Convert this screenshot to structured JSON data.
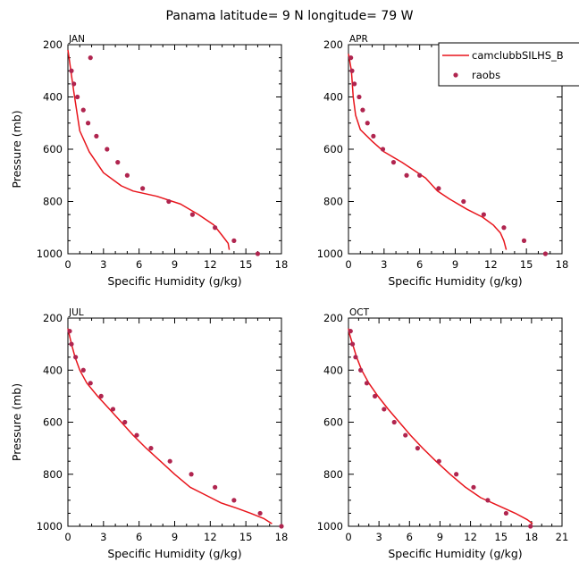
{
  "figure": {
    "title": "Panama  latitude= 9 N longitude= 79 W"
  },
  "legend": {
    "model_label": "camclubbSILHS_B",
    "obs_label": "raobs"
  },
  "colors": {
    "model": "#e8141b",
    "obs": "#b0254f",
    "axis": "#000000"
  },
  "chart_data": [
    {
      "type": "line",
      "panel": "JAN",
      "xlabel": "Specific Humidity (g/kg)",
      "ylabel": "Pressure (mb)",
      "xlim": [
        0,
        18
      ],
      "ylim": [
        200,
        1000
      ],
      "xticks": [
        0,
        3,
        6,
        9,
        12,
        15,
        18
      ],
      "yticks": [
        200,
        400,
        600,
        800,
        1000
      ],
      "series": [
        {
          "name": "camclubbSILHS_B",
          "style": "line",
          "x": [
            0.0,
            0.1,
            0.25,
            0.5,
            0.8,
            1.0,
            1.8,
            3.0,
            4.5,
            5.5,
            7.5,
            9.5,
            11.0,
            12.3,
            13.0,
            13.5,
            13.6
          ],
          "y": [
            220,
            250,
            300,
            380,
            470,
            530,
            610,
            690,
            740,
            760,
            780,
            810,
            850,
            890,
            930,
            960,
            985
          ]
        },
        {
          "name": "raobs",
          "style": "markers",
          "x": [
            1.9,
            0.3,
            0.5,
            0.8,
            1.3,
            1.7,
            2.4,
            3.3,
            4.2,
            5.0,
            6.3,
            8.5,
            10.5,
            12.4,
            14.0,
            16.0
          ],
          "y": [
            250,
            300,
            350,
            400,
            450,
            500,
            550,
            600,
            650,
            700,
            750,
            800,
            850,
            900,
            950,
            1000
          ]
        }
      ]
    },
    {
      "type": "line",
      "panel": "APR",
      "xlabel": "Specific Humidity (g/kg)",
      "ylabel": "Pressure (mb)",
      "xlim": [
        0,
        18
      ],
      "ylim": [
        200,
        1000
      ],
      "xticks": [
        0,
        3,
        6,
        9,
        12,
        15,
        18
      ],
      "yticks": [
        200,
        400,
        600,
        800,
        1000
      ],
      "series": [
        {
          "name": "camclubbSILHS_B",
          "style": "line",
          "x": [
            0.0,
            0.1,
            0.25,
            0.4,
            0.6,
            1.0,
            2.0,
            3.0,
            4.5,
            5.5,
            6.5,
            7.5,
            8.5,
            10.0,
            11.3,
            12.2,
            12.8,
            13.1,
            13.3
          ],
          "y": [
            235,
            260,
            300,
            400,
            470,
            525,
            570,
            610,
            650,
            680,
            710,
            760,
            790,
            830,
            860,
            890,
            920,
            950,
            985
          ]
        },
        {
          "name": "raobs",
          "style": "markers",
          "x": [
            0.2,
            0.3,
            0.5,
            0.9,
            1.2,
            1.6,
            2.1,
            2.9,
            3.8,
            4.9,
            6.0,
            7.6,
            9.7,
            11.4,
            13.1,
            14.8,
            16.6
          ],
          "y": [
            250,
            300,
            350,
            400,
            450,
            500,
            550,
            600,
            650,
            700,
            700,
            750,
            800,
            850,
            900,
            950,
            1000
          ]
        }
      ]
    },
    {
      "type": "line",
      "panel": "JUL",
      "xlabel": "Specific Humidity (g/kg)",
      "ylabel": "Pressure (mb)",
      "xlim": [
        0,
        18
      ],
      "ylim": [
        200,
        1000
      ],
      "xticks": [
        0,
        3,
        6,
        9,
        12,
        15,
        18
      ],
      "yticks": [
        200,
        400,
        600,
        800,
        1000
      ],
      "series": [
        {
          "name": "camclubbSILHS_B",
          "style": "line",
          "x": [
            0.0,
            0.1,
            0.3,
            0.6,
            1.0,
            1.6,
            2.5,
            3.5,
            4.5,
            5.5,
            6.6,
            7.8,
            9.0,
            10.3,
            11.6,
            12.9,
            14.2,
            15.4,
            16.5,
            17.2
          ],
          "y": [
            240,
            260,
            300,
            350,
            400,
            450,
            500,
            550,
            600,
            650,
            700,
            750,
            800,
            850,
            880,
            910,
            930,
            950,
            970,
            990
          ]
        },
        {
          "name": "raobs",
          "style": "markers",
          "x": [
            0.15,
            0.3,
            0.65,
            1.3,
            1.9,
            2.8,
            3.8,
            4.8,
            5.8,
            7.0,
            8.6,
            10.4,
            12.4,
            14.0,
            16.2,
            18.0
          ],
          "y": [
            250,
            300,
            350,
            400,
            450,
            500,
            550,
            600,
            650,
            700,
            750,
            800,
            850,
            900,
            950,
            1000
          ]
        }
      ]
    },
    {
      "type": "line",
      "panel": "OCT",
      "xlabel": "Specific Humidity (g/kg)",
      "ylabel": "Pressure (mb)",
      "xlim": [
        0,
        21
      ],
      "ylim": [
        200,
        1000
      ],
      "xticks": [
        0,
        3,
        6,
        9,
        12,
        15,
        18,
        21
      ],
      "yticks": [
        200,
        400,
        600,
        800,
        1000
      ],
      "series": [
        {
          "name": "camclubbSILHS_B",
          "style": "line",
          "x": [
            0.0,
            0.1,
            0.4,
            0.8,
            1.3,
            2.0,
            2.9,
            3.9,
            5.0,
            6.1,
            7.3,
            8.6,
            10.0,
            11.5,
            13.0,
            14.7,
            16.4,
            17.6,
            18.1
          ],
          "y": [
            240,
            260,
            300,
            350,
            400,
            450,
            500,
            550,
            600,
            650,
            700,
            750,
            800,
            850,
            890,
            920,
            950,
            975,
            990
          ]
        },
        {
          "name": "raobs",
          "style": "markers",
          "x": [
            0.2,
            0.4,
            0.7,
            1.2,
            1.8,
            2.6,
            3.5,
            4.5,
            5.6,
            6.8,
            8.9,
            10.6,
            12.3,
            13.7,
            15.5,
            17.9
          ],
          "y": [
            250,
            300,
            350,
            400,
            450,
            500,
            550,
            600,
            650,
            700,
            750,
            800,
            850,
            900,
            950,
            1000
          ]
        }
      ]
    }
  ]
}
